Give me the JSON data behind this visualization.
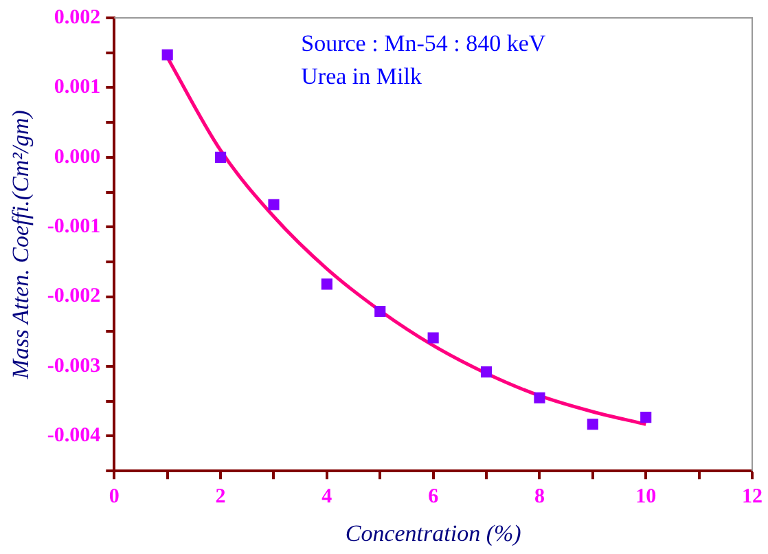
{
  "chart_data": {
    "type": "scatter",
    "xlabel": "Concentration (%)",
    "ylabel": "Mass Atten. Coeffi.(Cm²/gm)",
    "annotations": [
      "Source : Mn-54 : 840 keV",
      "Urea in Milk"
    ],
    "xlim": [
      0,
      12
    ],
    "xticks": [
      0,
      {
        "value": 1,
        "label": null
      },
      2,
      {
        "value": 3,
        "label": null
      },
      4,
      {
        "value": 5,
        "label": null
      },
      6,
      {
        "value": 7,
        "label": null
      },
      8,
      {
        "value": 9,
        "label": null
      },
      10,
      {
        "value": 11,
        "label": null
      },
      12
    ],
    "ylim": [
      -0.0045,
      0.002
    ],
    "yticks": [
      {
        "value": -0.0045,
        "label": null
      },
      {
        "value": -0.004,
        "label": "-0.004"
      },
      {
        "value": -0.0035,
        "label": null
      },
      {
        "value": -0.003,
        "label": "-0.003"
      },
      {
        "value": -0.0025,
        "label": null
      },
      {
        "value": -0.002,
        "label": "-0.002"
      },
      {
        "value": -0.0015,
        "label": null
      },
      {
        "value": -0.001,
        "label": "-0.001"
      },
      {
        "value": -0.0005,
        "label": null
      },
      {
        "value": 0,
        "label": "0.000"
      },
      {
        "value": 0.0005,
        "label": null
      },
      {
        "value": 0.001,
        "label": "0.001"
      },
      {
        "value": 0.0015,
        "label": null
      },
      {
        "value": 0.002,
        "label": "0.002"
      }
    ],
    "grid": false,
    "legend": false,
    "marker": "square",
    "series": [
      {
        "color": "#8000ff",
        "x": [
          1,
          2,
          3,
          4,
          5,
          6,
          7,
          8,
          9,
          10
        ],
        "values": [
          0.00147,
          0,
          -0.00068,
          -0.00182,
          -0.00221,
          -0.00259,
          -0.00308,
          -0.00345,
          -0.00383,
          -0.00373
        ]
      },
      {
        "type": "line",
        "color": "#ff0080",
        "marker": "none",
        "x": [
          1,
          2,
          3,
          4,
          5,
          6,
          7,
          8,
          9,
          10
        ],
        "values": [
          0.00143,
          0.0001,
          -0.00085,
          -0.0016,
          -0.0022,
          -0.0027,
          -0.0031,
          -0.00342,
          -0.00365,
          -0.00383
        ]
      }
    ]
  }
}
